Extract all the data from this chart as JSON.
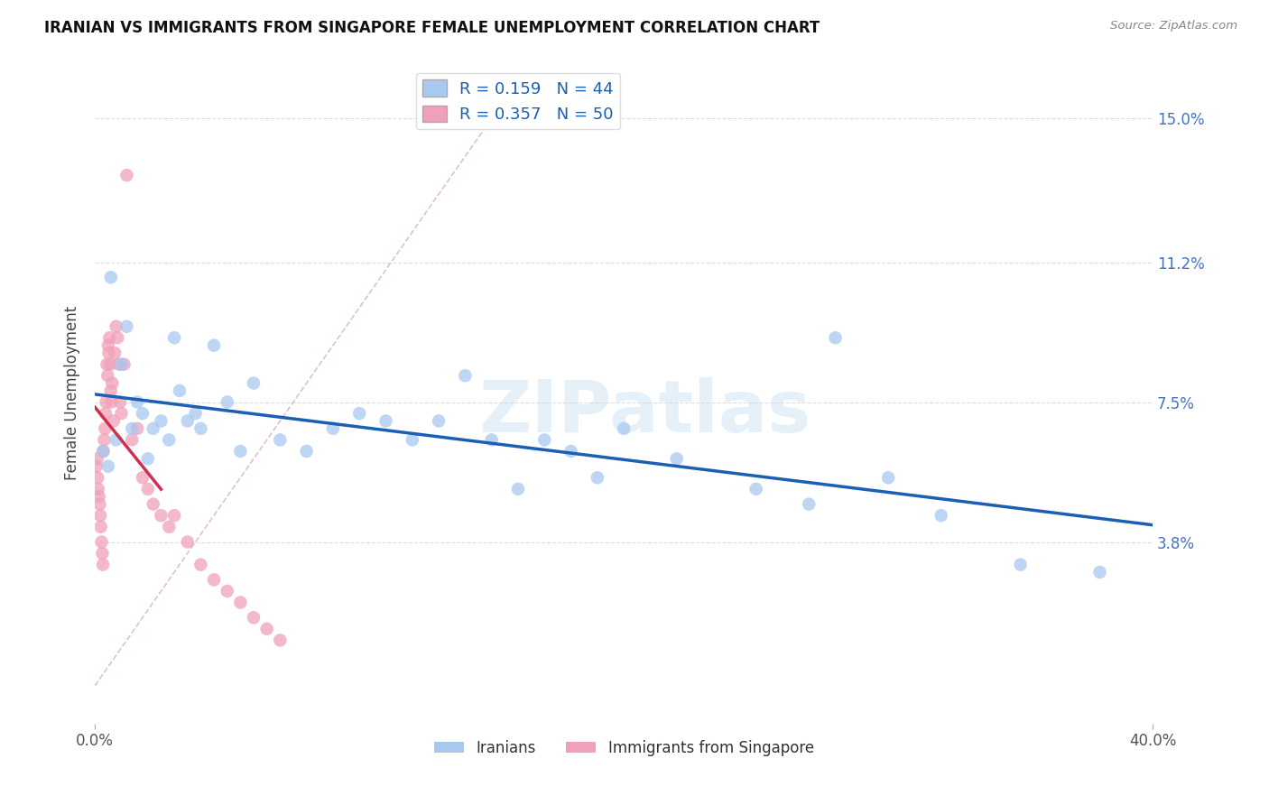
{
  "title": "IRANIAN VS IMMIGRANTS FROM SINGAPORE FEMALE UNEMPLOYMENT CORRELATION CHART",
  "source": "Source: ZipAtlas.com",
  "ylabel": "Female Unemployment",
  "ytick_labels": [
    "3.8%",
    "7.5%",
    "11.2%",
    "15.0%"
  ],
  "ytick_values": [
    3.8,
    7.5,
    11.2,
    15.0
  ],
  "xlim": [
    0.0,
    40.0
  ],
  "ylim": [
    -1.0,
    16.5
  ],
  "legend1_r": "0.159",
  "legend1_n": "44",
  "legend2_r": "0.357",
  "legend2_n": "50",
  "color_iranians": "#a8c8f0",
  "color_singapore": "#f0a0b8",
  "color_line_iranians": "#1a5fb4",
  "color_line_singapore": "#d0304060",
  "color_diag": "#c8a0a8",
  "watermark": "ZIPatlas",
  "iranians_x": [
    0.3,
    0.5,
    0.6,
    0.8,
    1.0,
    1.2,
    1.4,
    1.6,
    1.8,
    2.0,
    2.2,
    2.5,
    2.8,
    3.0,
    3.2,
    3.5,
    3.8,
    4.0,
    4.5,
    5.0,
    5.5,
    6.0,
    7.0,
    8.0,
    9.0,
    10.0,
    11.0,
    12.0,
    13.0,
    14.0,
    15.0,
    16.0,
    17.0,
    18.0,
    19.0,
    20.0,
    22.0,
    25.0,
    27.0,
    28.0,
    30.0,
    32.0,
    35.0,
    38.0
  ],
  "iranians_y": [
    6.2,
    5.8,
    10.8,
    6.5,
    8.5,
    9.5,
    6.8,
    7.5,
    7.2,
    6.0,
    6.8,
    7.0,
    6.5,
    9.2,
    7.8,
    7.0,
    7.2,
    6.8,
    9.0,
    7.5,
    6.2,
    8.0,
    6.5,
    6.2,
    6.8,
    7.2,
    7.0,
    6.5,
    7.0,
    8.2,
    6.5,
    5.2,
    6.5,
    6.2,
    5.5,
    6.8,
    6.0,
    5.2,
    4.8,
    9.2,
    5.5,
    4.5,
    3.2,
    3.0
  ],
  "singapore_x": [
    0.05,
    0.08,
    0.1,
    0.12,
    0.15,
    0.18,
    0.2,
    0.22,
    0.25,
    0.28,
    0.3,
    0.32,
    0.35,
    0.38,
    0.4,
    0.42,
    0.45,
    0.48,
    0.5,
    0.52,
    0.55,
    0.58,
    0.6,
    0.62,
    0.65,
    0.7,
    0.75,
    0.8,
    0.85,
    0.9,
    0.95,
    1.0,
    1.1,
    1.2,
    1.4,
    1.6,
    1.8,
    2.0,
    2.2,
    2.5,
    2.8,
    3.0,
    3.5,
    4.0,
    4.5,
    5.0,
    5.5,
    6.0,
    6.5,
    7.0
  ],
  "singapore_y": [
    5.8,
    6.0,
    5.5,
    5.2,
    5.0,
    4.8,
    4.5,
    4.2,
    3.8,
    3.5,
    3.2,
    6.2,
    6.5,
    6.8,
    7.2,
    7.5,
    8.5,
    8.2,
    9.0,
    8.8,
    9.2,
    8.5,
    7.8,
    7.5,
    8.0,
    7.0,
    8.8,
    9.5,
    9.2,
    8.5,
    7.5,
    7.2,
    8.5,
    13.5,
    6.5,
    6.8,
    5.5,
    5.2,
    4.8,
    4.5,
    4.2,
    4.5,
    3.8,
    3.2,
    2.8,
    2.5,
    2.2,
    1.8,
    1.5,
    1.2
  ]
}
